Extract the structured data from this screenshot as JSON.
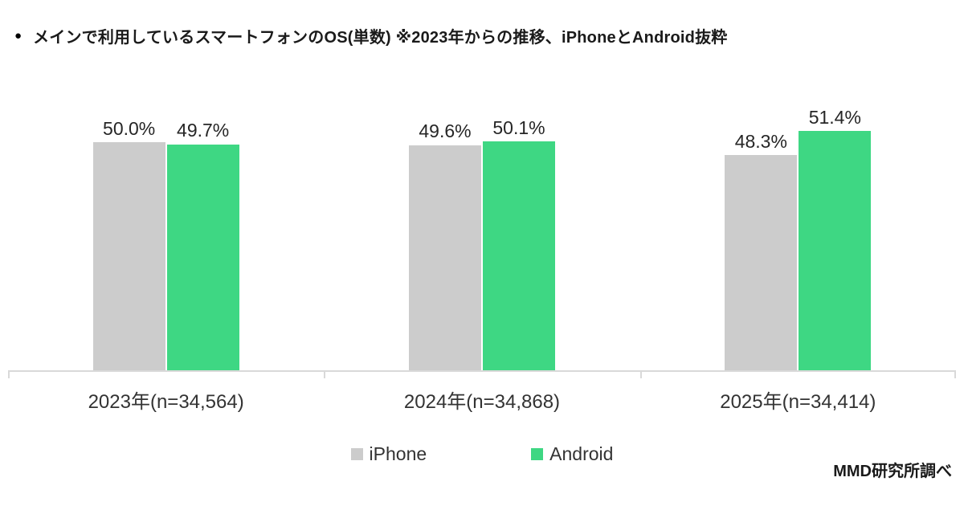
{
  "title": {
    "bullet": "●",
    "text": "メインで利用しているスマートフォンのOS(単数) ※2023年からの推移、iPhoneとAndroid抜粋"
  },
  "source": "MMD研究所調べ",
  "colors": {
    "iphone": "#cccccc",
    "android": "#3ed783",
    "axis": "#d9d9d9"
  },
  "legend": [
    {
      "label": "iPhone",
      "color": "#cccccc"
    },
    {
      "label": "Android",
      "color": "#3ed783"
    }
  ],
  "chart_data": {
    "type": "bar",
    "title": "メインで利用しているスマートフォンのOS(単数) ※2023年からの推移、iPhoneとAndroid抜粋",
    "categories": [
      "2023年(n=34,564)",
      "2024年(n=34,868)",
      "2025年(n=34,414)"
    ],
    "series": [
      {
        "name": "iPhone",
        "color": "#cccccc",
        "values": [
          50.0,
          49.6,
          48.3
        ],
        "labels": [
          "50.0%",
          "49.6%",
          "48.3%"
        ]
      },
      {
        "name": "Android",
        "color": "#3ed783",
        "values": [
          49.7,
          50.1,
          51.4
        ],
        "labels": [
          "49.7%",
          "50.1%",
          "51.4%"
        ]
      }
    ],
    "xlabel": "",
    "ylabel": "",
    "ylim": [
      20,
      60
    ],
    "y_axis_visible": false,
    "grid": false,
    "legend_position": "bottom",
    "source_note": "MMD研究所調べ"
  }
}
